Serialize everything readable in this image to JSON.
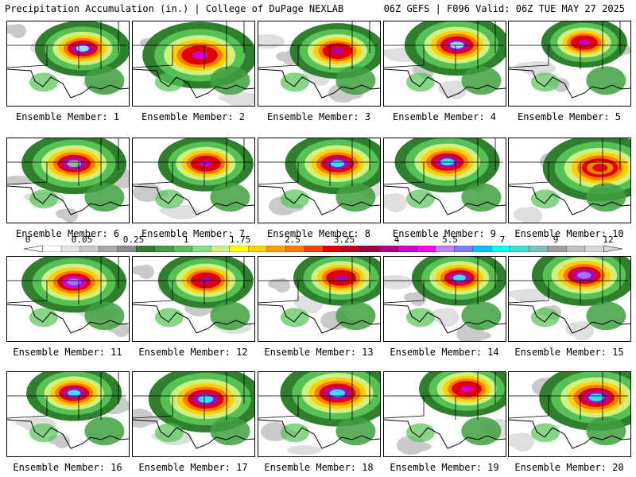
{
  "header": {
    "title": "Precipitation Accumulation (in.) | College of DuPage NEXLAB",
    "run_info": "06Z GEFS | F096 Valid: 06Z TUE MAY 27 2025"
  },
  "members": [
    {
      "label": "Ensemble Member: 1",
      "member": 1,
      "core": "#8fe0ff",
      "peak": "#b000b0",
      "center": [
        0.62,
        0.32
      ],
      "spread": 0.5
    },
    {
      "label": "Ensemble Member: 2",
      "member": 2,
      "core": "#d000d0",
      "peak": "#e00000",
      "center": [
        0.55,
        0.4
      ],
      "spread": 0.6
    },
    {
      "label": "Ensemble Member: 3",
      "member": 3,
      "core": "#b000b0",
      "peak": "#e00000",
      "center": [
        0.65,
        0.35
      ],
      "spread": 0.5
    },
    {
      "label": "Ensemble Member: 4",
      "member": 4,
      "core": "#8fe0ff",
      "peak": "#b000b0",
      "center": [
        0.6,
        0.28
      ],
      "spread": 0.55
    },
    {
      "label": "Ensemble Member: 5",
      "member": 5,
      "core": "#d000d0",
      "peak": "#e00000",
      "center": [
        0.62,
        0.25
      ],
      "spread": 0.45
    },
    {
      "label": "Ensemble Member: 6",
      "member": 6,
      "core": "#8fb8a0",
      "peak": "#b000b0",
      "center": [
        0.55,
        0.3
      ],
      "spread": 0.55
    },
    {
      "label": "Ensemble Member: 7",
      "member": 7,
      "core": "#d000d0",
      "peak": "#e00000",
      "center": [
        0.6,
        0.3
      ],
      "spread": 0.5
    },
    {
      "label": "Ensemble Member: 8",
      "member": 8,
      "core": "#30e0ff",
      "peak": "#b000b0",
      "center": [
        0.65,
        0.3
      ],
      "spread": 0.55
    },
    {
      "label": "Ensemble Member: 9",
      "member": 9,
      "core": "#30e0ff",
      "peak": "#b000b0",
      "center": [
        0.52,
        0.28
      ],
      "spread": 0.55
    },
    {
      "label": "Ensemble Member: 10",
      "member": 10,
      "core": "#e00000",
      "peak": "#ff7f00",
      "center": [
        0.75,
        0.35
      ],
      "spread": 0.6
    },
    {
      "label": "Ensemble Member: 11",
      "member": 11,
      "core": "#a070ff",
      "peak": "#d000d0",
      "center": [
        0.55,
        0.3
      ],
      "spread": 0.55
    },
    {
      "label": "Ensemble Member: 12",
      "member": 12,
      "core": "#b000b0",
      "peak": "#e00000",
      "center": [
        0.6,
        0.28
      ],
      "spread": 0.5
    },
    {
      "label": "Ensemble Member: 13",
      "member": 13,
      "core": "#b000b0",
      "peak": "#e00000",
      "center": [
        0.68,
        0.25
      ],
      "spread": 0.5
    },
    {
      "label": "Ensemble Member: 14",
      "member": 14,
      "core": "#30e0ff",
      "peak": "#b000b0",
      "center": [
        0.62,
        0.25
      ],
      "spread": 0.5
    },
    {
      "label": "Ensemble Member: 15",
      "member": 15,
      "core": "#a070ff",
      "peak": "#b000b0",
      "center": [
        0.62,
        0.22
      ],
      "spread": 0.55
    },
    {
      "label": "Ensemble Member: 16",
      "member": 16,
      "core": "#30e0ff",
      "peak": "#b000b0",
      "center": [
        0.55,
        0.25
      ],
      "spread": 0.5
    },
    {
      "label": "Ensemble Member: 17",
      "member": 17,
      "core": "#30e0ff",
      "peak": "#b000b0",
      "center": [
        0.6,
        0.32
      ],
      "spread": 0.6
    },
    {
      "label": "Ensemble Member: 18",
      "member": 18,
      "core": "#30e0ff",
      "peak": "#b000b0",
      "center": [
        0.65,
        0.25
      ],
      "spread": 0.6
    },
    {
      "label": "Ensemble Member: 19",
      "member": 19,
      "core": "#d000d0",
      "peak": "#e00000",
      "center": [
        0.68,
        0.2
      ],
      "spread": 0.5
    },
    {
      "label": "Ensemble Member: 20",
      "member": 20,
      "core": "#30e0ff",
      "peak": "#b000b0",
      "center": [
        0.72,
        0.3
      ],
      "spread": 0.6
    }
  ],
  "colorbar": {
    "tick_labels": [
      "0",
      "0.05",
      "0.25",
      "1",
      "1.75",
      "2.5",
      "3.25",
      "4",
      "5.5",
      "7",
      "9",
      "12"
    ],
    "colors": [
      "#ffffff",
      "#e6e6e6",
      "#c8c8c8",
      "#a9a9a9",
      "#8c8c8c",
      "#2f7f2f",
      "#3fa03f",
      "#56c256",
      "#86e08a",
      "#d0f080",
      "#ffff00",
      "#ffd000",
      "#ffa000",
      "#ff7800",
      "#ff4000",
      "#e00000",
      "#c00020",
      "#a00040",
      "#b00090",
      "#d000d0",
      "#ff00ff",
      "#c080ff",
      "#8080ff",
      "#00c0ff",
      "#00ffff",
      "#40e0d0",
      "#80c0c0",
      "#a0a0a0",
      "#c0c0c0",
      "#d8d8d8"
    ]
  }
}
